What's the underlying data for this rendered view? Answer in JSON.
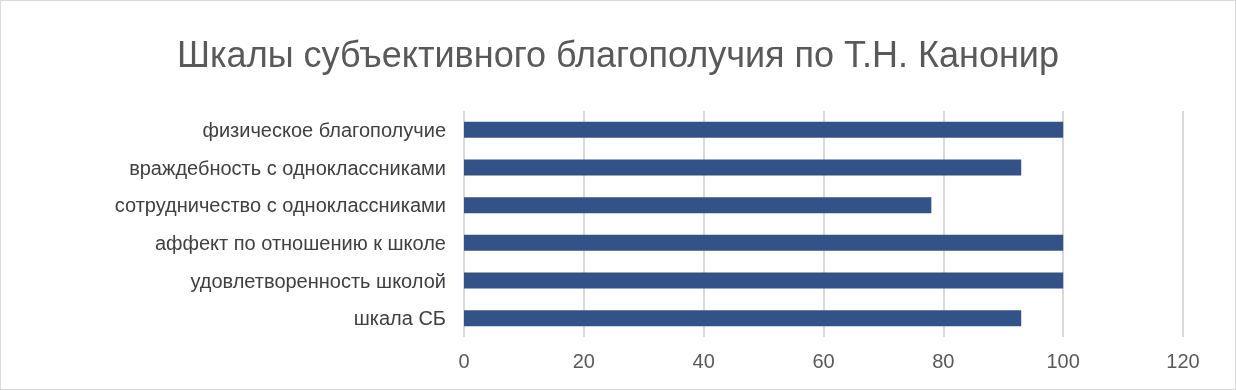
{
  "chart_data": {
    "type": "bar",
    "orientation": "horizontal",
    "title": "Шкалы субъективного благополучия по Т.Н. Канонир",
    "categories": [
      "физическое благополучие",
      "враждебность с одноклассниками",
      "сотрудничество с одноклассниками",
      "аффект по отношению к школе",
      "удовлетворенность школой",
      "шкала СБ"
    ],
    "values": [
      100,
      93,
      78,
      100,
      100,
      93
    ],
    "color": "#335288",
    "xlim": [
      0,
      120
    ],
    "xticks": [
      0,
      20,
      40,
      60,
      80,
      100,
      120
    ],
    "grid": "x"
  }
}
